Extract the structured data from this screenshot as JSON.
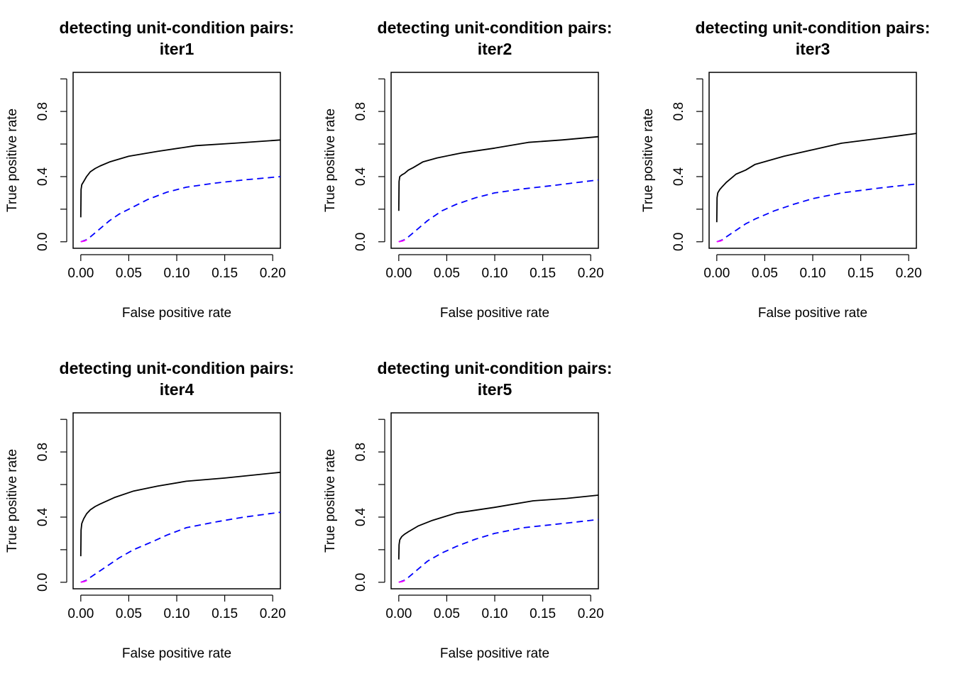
{
  "chart_data": [
    {
      "type": "line",
      "title": "detecting unit-condition pairs:",
      "subtitle": "iter1",
      "xlabel": "False positive rate",
      "ylabel": "True positive rate",
      "xlim": [
        -0.008,
        0.208
      ],
      "ylim": [
        -0.04,
        1.04
      ],
      "xticks": [
        0.0,
        0.05,
        0.1,
        0.15,
        0.2
      ],
      "xtick_labels": [
        "0.00",
        "0.05",
        "0.10",
        "0.15",
        "0.20"
      ],
      "yticks": [
        0.0,
        0.4,
        0.8
      ],
      "ytick_labels": [
        "0.0",
        "0.4",
        "0.8"
      ],
      "grid": false,
      "series": [
        {
          "color": "#000000",
          "dash": "solid",
          "x": [
            0.0,
            0.0003,
            0.001,
            0.003,
            0.006,
            0.01,
            0.015,
            0.02,
            0.03,
            0.05,
            0.08,
            0.12,
            0.16,
            0.208
          ],
          "y": [
            0.15,
            0.32,
            0.35,
            0.37,
            0.4,
            0.43,
            0.45,
            0.465,
            0.49,
            0.525,
            0.555,
            0.59,
            0.605,
            0.625
          ]
        },
        {
          "color": "#0000ff",
          "dash": "dashed",
          "x": [
            0.0,
            0.005,
            0.01,
            0.02,
            0.03,
            0.04,
            0.05,
            0.07,
            0.09,
            0.11,
            0.14,
            0.17,
            0.208
          ],
          "y": [
            0.0,
            0.01,
            0.03,
            0.08,
            0.13,
            0.17,
            0.2,
            0.26,
            0.305,
            0.335,
            0.36,
            0.38,
            0.4
          ]
        },
        {
          "color": "#ff00ff",
          "dash": "dashed",
          "x": [
            0.0,
            0.004,
            0.008
          ],
          "y": [
            0.0,
            0.005,
            0.015
          ]
        }
      ]
    },
    {
      "type": "line",
      "title": "detecting unit-condition pairs:",
      "subtitle": "iter2",
      "xlabel": "False positive rate",
      "ylabel": "True positive rate",
      "xlim": [
        -0.008,
        0.208
      ],
      "ylim": [
        -0.04,
        1.04
      ],
      "xticks": [
        0.0,
        0.05,
        0.1,
        0.15,
        0.2
      ],
      "xtick_labels": [
        "0.00",
        "0.05",
        "0.10",
        "0.15",
        "0.20"
      ],
      "yticks": [
        0.0,
        0.4,
        0.8
      ],
      "ytick_labels": [
        "0.0",
        "0.4",
        "0.8"
      ],
      "grid": false,
      "series": [
        {
          "color": "#000000",
          "dash": "solid",
          "x": [
            0.0,
            0.0003,
            0.001,
            0.003,
            0.006,
            0.01,
            0.015,
            0.025,
            0.04,
            0.065,
            0.1,
            0.135,
            0.17,
            0.208
          ],
          "y": [
            0.19,
            0.37,
            0.4,
            0.41,
            0.42,
            0.44,
            0.455,
            0.49,
            0.515,
            0.545,
            0.575,
            0.61,
            0.625,
            0.645
          ]
        },
        {
          "color": "#0000ff",
          "dash": "dashed",
          "x": [
            0.0,
            0.005,
            0.01,
            0.02,
            0.03,
            0.045,
            0.06,
            0.08,
            0.1,
            0.13,
            0.16,
            0.208
          ],
          "y": [
            0.0,
            0.01,
            0.03,
            0.08,
            0.13,
            0.19,
            0.23,
            0.27,
            0.3,
            0.325,
            0.345,
            0.38
          ]
        },
        {
          "color": "#ff00ff",
          "dash": "dashed",
          "x": [
            0.0,
            0.004,
            0.008
          ],
          "y": [
            0.0,
            0.005,
            0.015
          ]
        }
      ]
    },
    {
      "type": "line",
      "title": "detecting unit-condition pairs:",
      "subtitle": "iter3",
      "xlabel": "False positive rate",
      "ylabel": "True positive rate",
      "xlim": [
        -0.008,
        0.208
      ],
      "ylim": [
        -0.04,
        1.04
      ],
      "xticks": [
        0.0,
        0.05,
        0.1,
        0.15,
        0.2
      ],
      "xtick_labels": [
        "0.00",
        "0.05",
        "0.10",
        "0.15",
        "0.20"
      ],
      "yticks": [
        0.0,
        0.4,
        0.8
      ],
      "ytick_labels": [
        "0.0",
        "0.4",
        "0.8"
      ],
      "grid": false,
      "series": [
        {
          "color": "#000000",
          "dash": "solid",
          "x": [
            0.0,
            0.0003,
            0.001,
            0.003,
            0.006,
            0.01,
            0.015,
            0.02,
            0.03,
            0.04,
            0.07,
            0.1,
            0.13,
            0.17,
            0.208
          ],
          "y": [
            0.12,
            0.27,
            0.3,
            0.32,
            0.34,
            0.365,
            0.39,
            0.415,
            0.44,
            0.475,
            0.525,
            0.565,
            0.605,
            0.635,
            0.665
          ]
        },
        {
          "color": "#0000ff",
          "dash": "dashed",
          "x": [
            0.0,
            0.005,
            0.01,
            0.02,
            0.03,
            0.04,
            0.06,
            0.08,
            0.1,
            0.13,
            0.17,
            0.208
          ],
          "y": [
            0.0,
            0.01,
            0.03,
            0.07,
            0.11,
            0.14,
            0.19,
            0.23,
            0.265,
            0.3,
            0.33,
            0.355
          ]
        },
        {
          "color": "#ff00ff",
          "dash": "dashed",
          "x": [
            0.0,
            0.004,
            0.008
          ],
          "y": [
            0.0,
            0.005,
            0.015
          ]
        }
      ]
    },
    {
      "type": "line",
      "title": "detecting unit-condition pairs:",
      "subtitle": "iter4",
      "xlabel": "False positive rate",
      "ylabel": "True positive rate",
      "xlim": [
        -0.008,
        0.208
      ],
      "ylim": [
        -0.04,
        1.04
      ],
      "xticks": [
        0.0,
        0.05,
        0.1,
        0.15,
        0.2
      ],
      "xtick_labels": [
        "0.00",
        "0.05",
        "0.10",
        "0.15",
        "0.20"
      ],
      "yticks": [
        0.0,
        0.4,
        0.8
      ],
      "ytick_labels": [
        "0.0",
        "0.4",
        "0.8"
      ],
      "grid": false,
      "series": [
        {
          "color": "#000000",
          "dash": "solid",
          "x": [
            0.0,
            0.0003,
            0.001,
            0.003,
            0.006,
            0.01,
            0.015,
            0.02,
            0.035,
            0.055,
            0.08,
            0.11,
            0.15,
            0.208
          ],
          "y": [
            0.16,
            0.32,
            0.36,
            0.39,
            0.42,
            0.445,
            0.465,
            0.48,
            0.52,
            0.56,
            0.59,
            0.62,
            0.64,
            0.675
          ]
        },
        {
          "color": "#0000ff",
          "dash": "dashed",
          "x": [
            0.0,
            0.005,
            0.01,
            0.02,
            0.03,
            0.04,
            0.055,
            0.075,
            0.09,
            0.11,
            0.14,
            0.17,
            0.208
          ],
          "y": [
            0.0,
            0.01,
            0.03,
            0.07,
            0.11,
            0.15,
            0.2,
            0.25,
            0.29,
            0.335,
            0.37,
            0.4,
            0.43
          ]
        },
        {
          "color": "#ff00ff",
          "dash": "dashed",
          "x": [
            0.0,
            0.004,
            0.008
          ],
          "y": [
            0.0,
            0.005,
            0.015
          ]
        }
      ]
    },
    {
      "type": "line",
      "title": "detecting unit-condition pairs:",
      "subtitle": "iter5",
      "xlabel": "False positive rate",
      "ylabel": "True positive rate",
      "xlim": [
        -0.008,
        0.208
      ],
      "ylim": [
        -0.04,
        1.04
      ],
      "xticks": [
        0.0,
        0.05,
        0.1,
        0.15,
        0.2
      ],
      "xtick_labels": [
        "0.00",
        "0.05",
        "0.10",
        "0.15",
        "0.20"
      ],
      "yticks": [
        0.0,
        0.4,
        0.8
      ],
      "ytick_labels": [
        "0.0",
        "0.4",
        "0.8"
      ],
      "grid": false,
      "series": [
        {
          "color": "#000000",
          "dash": "solid",
          "x": [
            0.0,
            0.0003,
            0.001,
            0.003,
            0.006,
            0.01,
            0.02,
            0.035,
            0.06,
            0.1,
            0.14,
            0.175,
            0.208
          ],
          "y": [
            0.14,
            0.23,
            0.26,
            0.28,
            0.295,
            0.31,
            0.345,
            0.38,
            0.425,
            0.46,
            0.5,
            0.515,
            0.535
          ]
        },
        {
          "color": "#0000ff",
          "dash": "dashed",
          "x": [
            0.0,
            0.005,
            0.01,
            0.02,
            0.03,
            0.045,
            0.06,
            0.08,
            0.1,
            0.13,
            0.17,
            0.208
          ],
          "y": [
            0.0,
            0.01,
            0.03,
            0.08,
            0.13,
            0.18,
            0.22,
            0.265,
            0.3,
            0.335,
            0.36,
            0.385
          ]
        },
        {
          "color": "#ff00ff",
          "dash": "dashed",
          "x": [
            0.0,
            0.004,
            0.008
          ],
          "y": [
            0.0,
            0.005,
            0.015
          ]
        }
      ]
    }
  ]
}
